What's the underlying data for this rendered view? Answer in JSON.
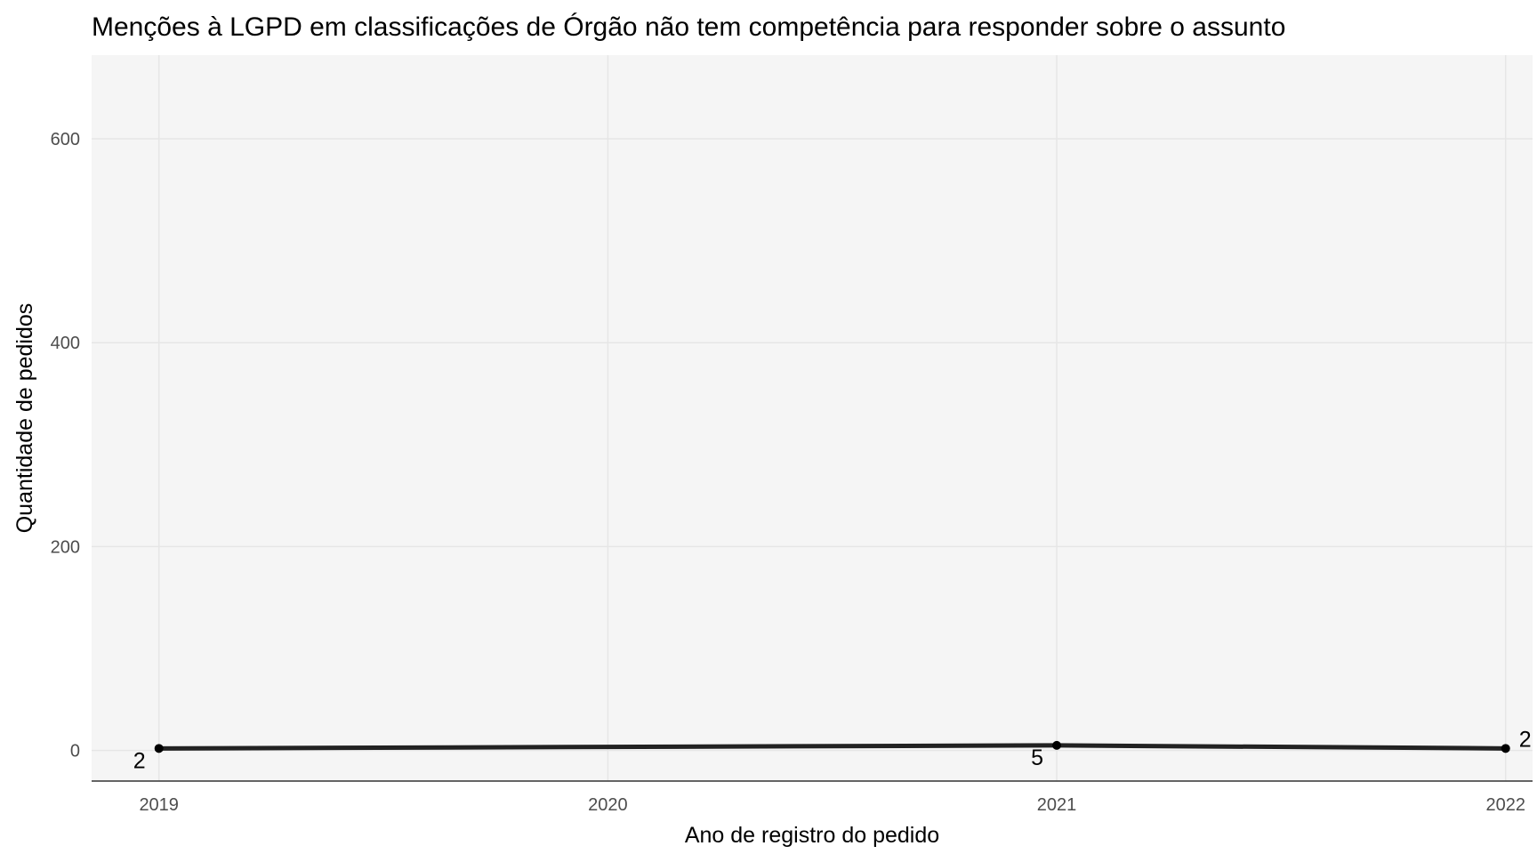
{
  "chart_data": {
    "type": "line",
    "title": "Menções à LGPD em classificações de Órgão não tem competência para responder sobre o assunto",
    "xlabel": "Ano de registro do pedido",
    "ylabel": "Quantidade de pedidos",
    "x": [
      2019,
      2020,
      2021,
      2022
    ],
    "x_tick_labels": [
      "2019",
      "2020",
      "2021",
      "2022"
    ],
    "y_ticks": [
      0,
      200,
      400,
      600
    ],
    "y_tick_labels": [
      "0",
      "200",
      "400",
      "600"
    ],
    "series": [
      {
        "values": [
          2,
          null,
          5,
          2
        ]
      }
    ],
    "data_labels": [
      {
        "x": 2019,
        "y": 2,
        "text": "2"
      },
      {
        "x": 2021,
        "y": 5,
        "text": "5"
      },
      {
        "x": 2022,
        "y": 2,
        "text": "2"
      }
    ],
    "xlim": [
      2018.85,
      2022.06
    ],
    "ylim": [
      -30,
      682
    ],
    "grid": true,
    "legend": "none",
    "colors": {
      "line": "#222222",
      "point": "#000000",
      "panel": "#f5f5f5",
      "grid": "#e6e6e6",
      "axis": "#333333"
    }
  }
}
